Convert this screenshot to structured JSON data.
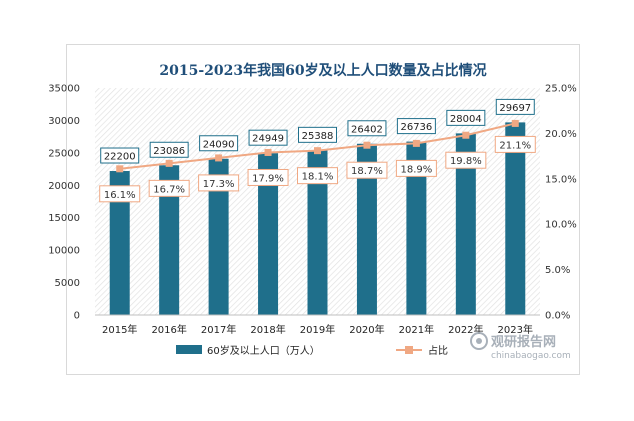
{
  "chart_data": {
    "type": "bar",
    "title": "2015-2023年我国60岁及以上人口数量及占比情况",
    "categories": [
      "2015年",
      "2016年",
      "2017年",
      "2018年",
      "2019年",
      "2020年",
      "2021年",
      "2022年",
      "2023年"
    ],
    "series": [
      {
        "name": "60岁及以上人口（万人）",
        "type": "bar",
        "axis": "left",
        "color": "#1f6f8b",
        "values": [
          22200,
          23086,
          24090,
          24949,
          25388,
          26402,
          26736,
          28004,
          29697
        ],
        "labels": [
          "22200",
          "23086",
          "24090",
          "24949",
          "25388",
          "26402",
          "26736",
          "28004",
          "29697"
        ]
      },
      {
        "name": "占比",
        "type": "line",
        "axis": "right",
        "color": "#f0a883",
        "values": [
          16.1,
          16.7,
          17.3,
          17.9,
          18.1,
          18.7,
          18.9,
          19.8,
          21.1
        ],
        "labels": [
          "16.1%",
          "16.7%",
          "17.3%",
          "17.9%",
          "18.1%",
          "18.7%",
          "18.9%",
          "19.8%",
          "21.1%"
        ]
      }
    ],
    "ylim": [
      0,
      35000
    ],
    "y_ticks": [
      "0",
      "5000",
      "10000",
      "15000",
      "20000",
      "25000",
      "30000",
      "35000"
    ],
    "y2lim": [
      0,
      25
    ],
    "y2_ticks": [
      "0.0%",
      "5.0%",
      "10.0%",
      "15.0%",
      "20.0%",
      "25.0%"
    ],
    "xlabel": "",
    "ylabel": "",
    "grid": false,
    "plot_background": "hatched",
    "legend_position": "bottom"
  },
  "watermark": {
    "brand": "观研报告网",
    "url": "chinabaogao.com"
  }
}
